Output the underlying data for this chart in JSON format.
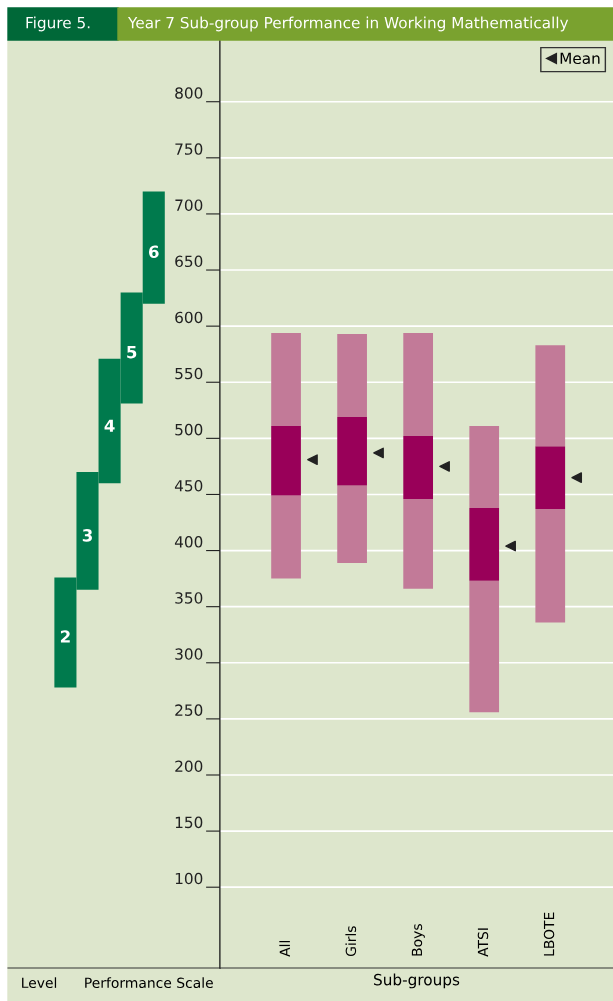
{
  "chart_data": [
    {
      "type": "bar",
      "title": "Year 7 Sub-group Performance in Working Mathematically",
      "annotations": [
        "Figure 5.",
        "Performance Scale"
      ],
      "xlabel": "Level",
      "categories": [
        "2",
        "3",
        "4",
        "5",
        "6"
      ],
      "base": [
        278,
        365,
        460,
        531,
        620
      ],
      "values": [
        98,
        105,
        111,
        99,
        100
      ],
      "color": "#007a4d",
      "ylim": [
        28,
        855
      ],
      "yticks": [
        100,
        150,
        200,
        250,
        300,
        350,
        400,
        450,
        500,
        550,
        600,
        650,
        700,
        750,
        800
      ],
      "tick_labels": "y",
      "grid": false
    },
    {
      "type": "bar",
      "xlabel": "Sub-groups",
      "categories": [
        "All",
        "Girls",
        "Boys",
        "ATSI",
        "LBOTE"
      ],
      "series": [
        {
          "color": "#c27a98",
          "base": [
            375,
            389,
            366,
            256,
            336
          ],
          "values": [
            74,
            69,
            80,
            117,
            101
          ]
        },
        {
          "color": "#990059",
          "base": [
            449,
            458,
            446,
            373,
            437
          ],
          "values": [
            62,
            61,
            56,
            65,
            56
          ]
        },
        {
          "color": "#c27a98",
          "base": [
            511,
            519,
            502,
            438,
            493
          ],
          "values": [
            83,
            74,
            92,
            73,
            90
          ]
        },
        {
          "type": "scatter",
          "name": "Mean",
          "color": "#222222",
          "marker": "triangle",
          "x": [
            "All",
            "Girls",
            "Boys",
            "ATSI",
            "LBOTE"
          ],
          "values": [
            481,
            487,
            475,
            404,
            465
          ]
        }
      ],
      "ylim": [
        28,
        855
      ],
      "yticks": [
        100,
        150,
        200,
        250,
        300,
        350,
        400,
        450,
        500,
        550,
        600,
        650,
        700,
        750,
        800
      ],
      "tick_labels": "x",
      "grid": "y",
      "legend": "top right"
    }
  ]
}
